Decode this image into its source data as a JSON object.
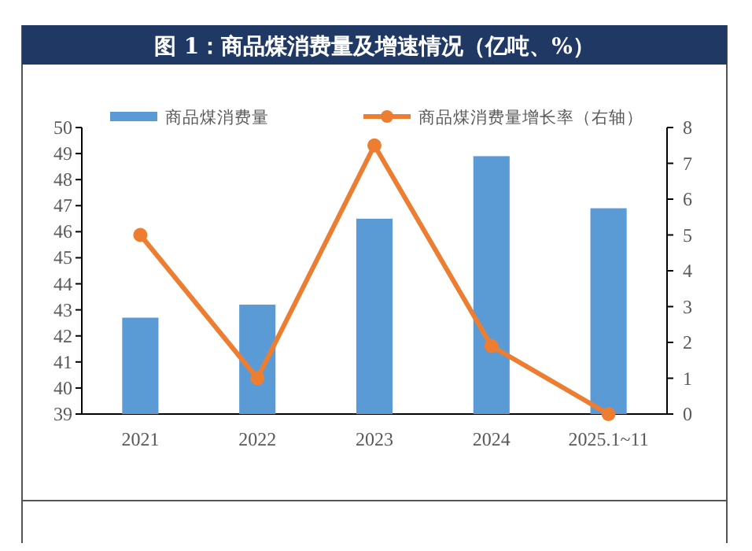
{
  "chart_data": {
    "type": "bar",
    "title": "图 1：商品煤消费量及增速情况（亿吨、%）",
    "categories": [
      "2021",
      "2022",
      "2023",
      "2024",
      "2025.1~11"
    ],
    "series": [
      {
        "name": "商品煤消费量",
        "color": "#5b9bd5",
        "values": [
          42.7,
          43.2,
          46.5,
          48.9,
          46.9
        ]
      },
      {
        "name": "商品煤消费量增长率（右轴）",
        "type": "line",
        "axis": "y2",
        "color": "#ed7d31",
        "marker": "circle",
        "values": [
          5.0,
          1.0,
          7.5,
          1.9,
          0.0
        ]
      }
    ],
    "ylim": [
      39,
      50
    ],
    "yticks": [
      39,
      40,
      41,
      42,
      43,
      44,
      45,
      46,
      47,
      48,
      49,
      50
    ],
    "y2lim": [
      0,
      8
    ],
    "y2ticks": [
      0,
      1,
      2,
      3,
      4,
      5,
      6,
      7,
      8
    ],
    "legend": "top",
    "grid": false
  }
}
